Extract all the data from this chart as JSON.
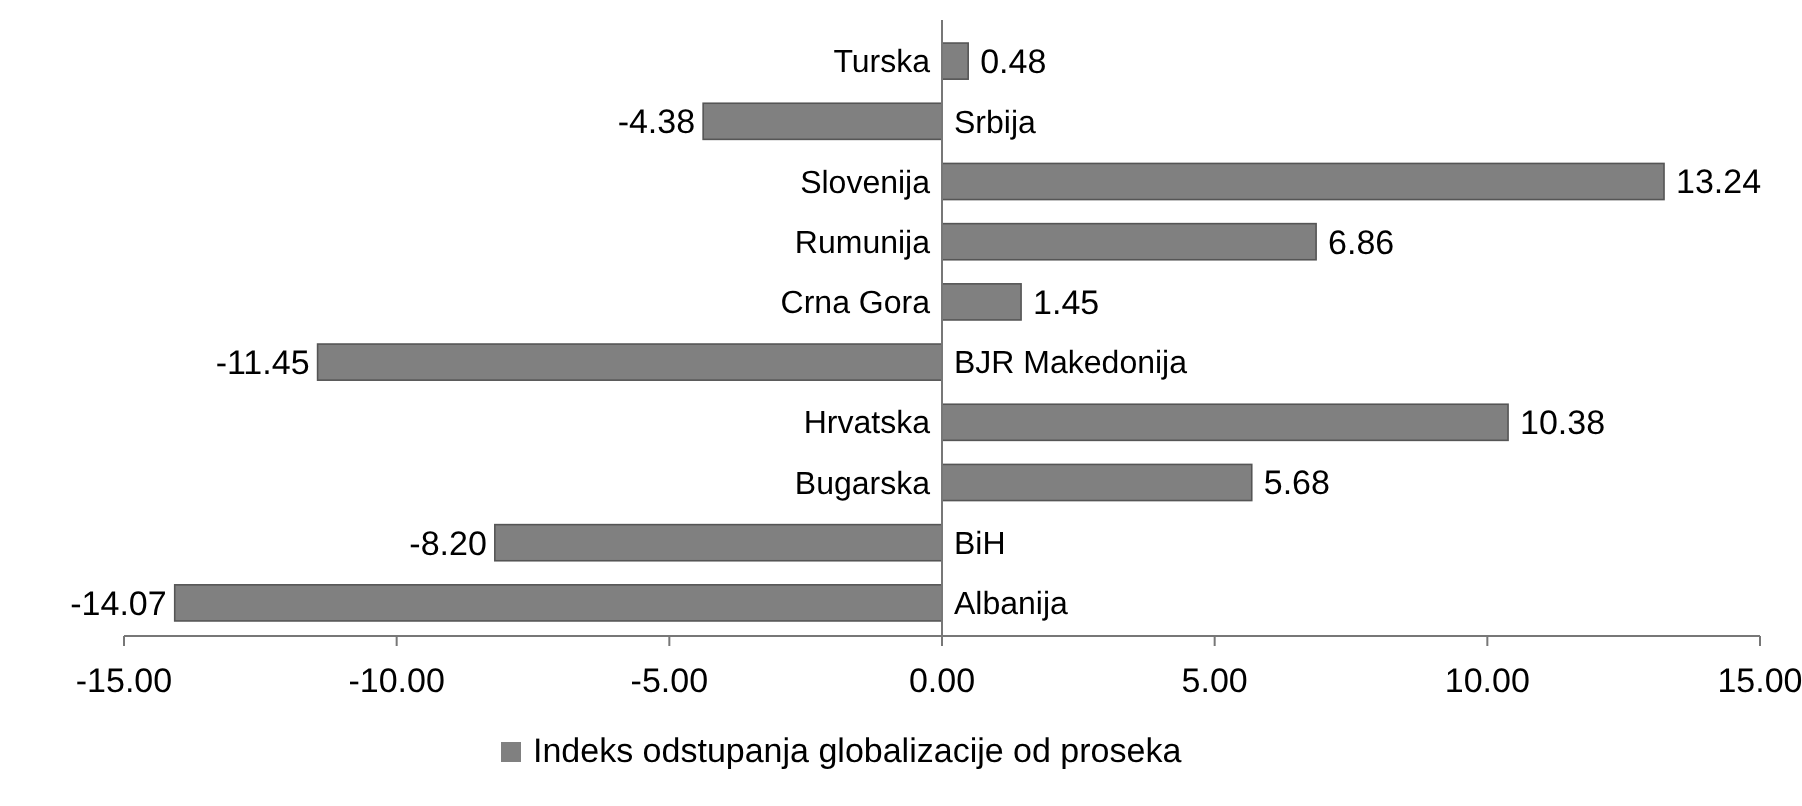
{
  "chart_data": {
    "type": "bar",
    "orientation": "horizontal",
    "categories": [
      "Turska",
      "Srbija",
      "Slovenija",
      "Rumunija",
      "Crna Gora",
      "BJR Makedonija",
      "Hrvatska",
      "Bugarska",
      "BiH",
      "Albanija"
    ],
    "series": [
      {
        "name": "Indeks odstupanja globalizacije od proseka",
        "color": "#808080",
        "values": [
          0.48,
          -4.38,
          13.24,
          6.86,
          1.45,
          -11.45,
          10.38,
          5.68,
          -8.2,
          -14.07
        ],
        "value_labels": [
          "0.48",
          "-4.38",
          "13.24",
          "6.86",
          "1.45",
          "-11.45",
          "10.38",
          "5.68",
          "-8.20",
          "-14.07"
        ]
      }
    ],
    "xlim": [
      -15,
      15
    ],
    "xticks": [
      {
        "value": -15,
        "label": "-15.00"
      },
      {
        "value": -10,
        "label": "-10.00"
      },
      {
        "value": -5,
        "label": "-5.00"
      },
      {
        "value": 0,
        "label": "0.00"
      },
      {
        "value": 5,
        "label": "5.00"
      },
      {
        "value": 10,
        "label": "10.00"
      },
      {
        "value": 15,
        "label": "15.00"
      }
    ],
    "legend": "bottom"
  }
}
